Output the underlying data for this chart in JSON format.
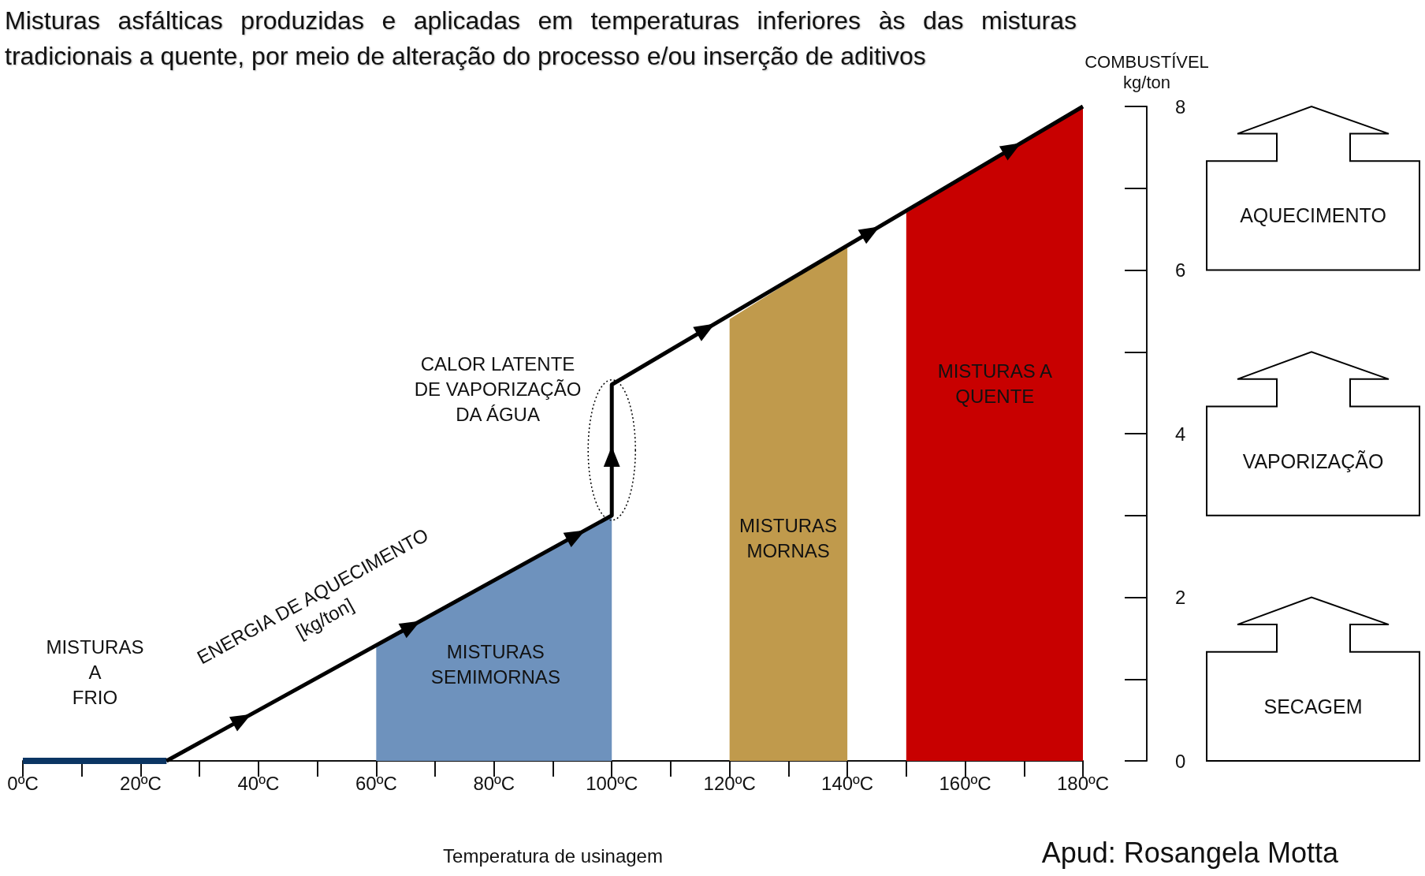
{
  "chart_data": {
    "type": "line",
    "title": "Misturas asfálticas produzidas e aplicadas em temperaturas inferiores às das misturas tradicionais a quente, por meio de alteração do processo e/ou inserção de aditivos",
    "xlabel": "Temperatura de usinagem",
    "ylabel": "COMBUSTÍVEL\nkg/ton",
    "series": [
      {
        "type": "area",
        "color": "#6e92bd",
        "x": [
          60,
          100
        ],
        "values": [
          1.4,
          3.0
        ]
      },
      {
        "type": "area",
        "color": "#c09a4c",
        "x": [
          120,
          140
        ],
        "values": [
          5.4,
          6.3
        ]
      },
      {
        "type": "area",
        "color": "#c80000",
        "x": [
          150,
          180
        ],
        "values": [
          6.7,
          8.0
        ]
      },
      {
        "color": "#0b3563",
        "x": [
          0,
          24.4
        ],
        "values": [
          0,
          0
        ]
      },
      {
        "color": "#000000",
        "x": [
          24.4,
          100,
          100,
          180
        ],
        "values": [
          0,
          3.0,
          4.6,
          8.0
        ]
      }
    ],
    "xlim": [
      0,
      180
    ],
    "xticks": [
      {
        "value": 0,
        "label": "0ºC"
      },
      {
        "value": 20,
        "label": "20ºC"
      },
      {
        "value": 40,
        "label": "40ºC"
      },
      {
        "value": 60,
        "label": "60ºC"
      },
      {
        "value": 80,
        "label": "80ºC"
      },
      {
        "value": 100,
        "label": "100ºC"
      },
      {
        "value": 120,
        "label": "120ºC"
      },
      {
        "value": 140,
        "label": "140ºC"
      },
      {
        "value": 160,
        "label": "160ºC"
      },
      {
        "value": 180,
        "label": "180ºC"
      }
    ],
    "ylim": [
      0,
      8
    ],
    "yticks": [
      0,
      2,
      4,
      6,
      8
    ],
    "annotations": [
      "MISTURAS\nA\nFRIO",
      "ENERGIA DE AQUECIMENTO\n[kg/ton]",
      "CALOR LATENTE\nDE VAPORIZAÇÃO\nDA ÁGUA",
      "MISTURAS\nSEMIMORNAS",
      "MISTURAS\nMORNAS",
      "MISTURAS A\nQUENTE",
      "AQUECIMENTO",
      "VAPORIZAÇÃO",
      "SECAGEM",
      "Apud: Rosangela Motta"
    ],
    "grid": false,
    "marker": "none",
    "line_style": "solid"
  }
}
